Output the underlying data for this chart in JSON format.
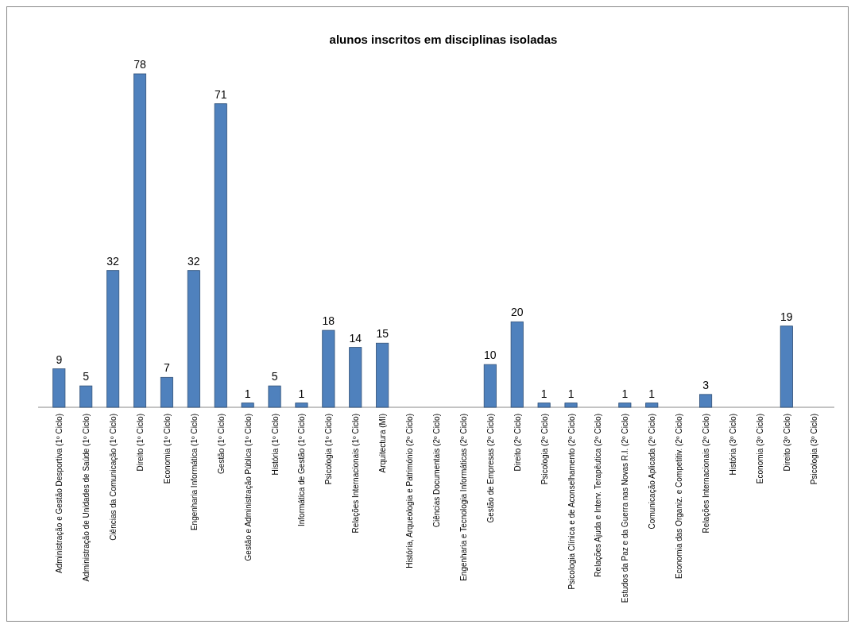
{
  "chart_data": {
    "type": "bar",
    "title": "alunos inscritos em disciplinas isoladas",
    "categories": [
      "Administração e Gestão Desportiva (1º Ciclo)",
      "Administração de Unidades de Saúde (1º Ciclo)",
      "Ciências da Comunicação (1º Ciclo)",
      "Direito (1º Ciclo)",
      "Economia (1º Ciclo)",
      "Engenharia Informática (1º Ciclo)",
      "Gestão (1º Ciclo)",
      "Gestão e Administração Pública (1º Ciclo)",
      "História (1º Ciclo)",
      "Informática de Gestão (1º Ciclo)",
      "Psicologia (1º Ciclo)",
      "Relações Internacionais (1º Ciclo)",
      "Arquitectura (MI)",
      "História, Arqueologia e Património (2º Ciclo)",
      "Ciências Documentais (2º Ciclo)",
      "Engenharia e Tecnologia Informáticas (2º Ciclo)",
      "Gestão de Empresas (2º Ciclo)",
      "Direito (2º Ciclo)",
      "Psicologia (2º Ciclo)",
      "Psicologia Clínica e de Aconselhamento (2º Ciclo)",
      "Relações Ajuda e Interv. Terapêutica (2º Ciclo)",
      "Estudos da Paz e da Guerra nas Novas R.I. (2º Ciclo)",
      "Comunicação Aplicada (2º Ciclo)",
      "Economia das Organiz. e Competitiv. (2º Ciclo)",
      "Relações Internacionais (2º Ciclo)",
      "História (3º Ciclo)",
      "Economia (3º Ciclo)",
      "Direito (3º Ciclo)",
      "Psicologia (3º Ciclo)"
    ],
    "values": [
      9,
      5,
      32,
      78,
      7,
      32,
      71,
      1,
      5,
      1,
      18,
      14,
      15,
      null,
      null,
      null,
      10,
      20,
      1,
      1,
      null,
      1,
      1,
      null,
      3,
      null,
      null,
      19,
      null
    ],
    "color": "#4f81bd",
    "data_labels": true
  }
}
